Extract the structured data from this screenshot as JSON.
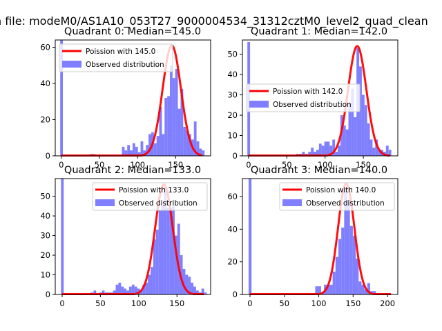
{
  "figure": {
    "suptitle": "n file: modeM0/AS1A10_053T27_9000004534_31312cztM0_level2_quad_clean"
  },
  "colors": {
    "histogram": "#7f7fff",
    "poisson": "#ff0000",
    "axes": "#000000"
  },
  "chart_data": [
    {
      "type": "bar",
      "title": "Quadrant 0: Median=145.0",
      "median": 145.0,
      "xlim": [
        -8,
        196
      ],
      "ylim": [
        0,
        64
      ],
      "xticks": [
        0,
        50,
        100,
        150
      ],
      "yticks": [
        0,
        20,
        40,
        60
      ],
      "legend_position": "top-left",
      "legend": [
        "Poission with 145.0",
        "Observed distribution"
      ],
      "series": [
        {
          "name": "Observed distribution",
          "type": "histogram",
          "bin_width": 3.5,
          "bins": [
            [
              -1.5,
              64
            ],
            [
              2.0,
              0
            ],
            [
              37.5,
              1
            ],
            [
              41.0,
              1
            ],
            [
              79.5,
              5
            ],
            [
              83.0,
              3
            ],
            [
              86.5,
              6
            ],
            [
              90.0,
              3
            ],
            [
              93.5,
              7
            ],
            [
              97.0,
              5
            ],
            [
              100.5,
              2
            ],
            [
              104.0,
              8
            ],
            [
              107.5,
              3
            ],
            [
              111.0,
              6
            ],
            [
              114.5,
              12
            ],
            [
              118.0,
              13
            ],
            [
              121.5,
              7
            ],
            [
              125.0,
              11
            ],
            [
              128.5,
              27
            ],
            [
              132.0,
              12
            ],
            [
              135.5,
              32
            ],
            [
              139.0,
              33
            ],
            [
              142.5,
              50
            ],
            [
              146.0,
              43
            ],
            [
              149.5,
              48
            ],
            [
              153.0,
              26
            ],
            [
              156.5,
              37
            ],
            [
              160.0,
              16
            ],
            [
              163.5,
              14
            ],
            [
              167.0,
              12
            ],
            [
              170.5,
              9
            ],
            [
              174.0,
              19
            ],
            [
              177.5,
              8
            ],
            [
              181.0,
              4
            ],
            [
              184.5,
              3
            ]
          ]
        },
        {
          "name": "Poission with 145.0",
          "type": "line",
          "mean": 145.0,
          "peak": 61,
          "x_from": 0,
          "x_to": 185
        }
      ]
    },
    {
      "type": "bar",
      "title": "Quadrant 1: Median=142.0",
      "median": 142.0,
      "xlim": [
        -8,
        195
      ],
      "ylim": [
        0,
        57
      ],
      "xticks": [
        0,
        50,
        100,
        150
      ],
      "yticks": [
        0,
        10,
        20,
        30,
        40,
        50
      ],
      "legend_position": "center-left",
      "legend": [
        "Poission with 142.0",
        "Observed distribution"
      ],
      "series": [
        {
          "name": "Observed distribution",
          "type": "histogram",
          "bin_width": 3.5,
          "bins": [
            [
              -1.5,
              56
            ],
            [
              62.0,
              1
            ],
            [
              66.0,
              1
            ],
            [
              70.0,
              2
            ],
            [
              74.0,
              1
            ],
            [
              78.0,
              2
            ],
            [
              81.5,
              4
            ],
            [
              85.0,
              2
            ],
            [
              88.5,
              3
            ],
            [
              92.0,
              6
            ],
            [
              95.5,
              5
            ],
            [
              99.0,
              7
            ],
            [
              102.5,
              7
            ],
            [
              106.0,
              5
            ],
            [
              109.5,
              8
            ],
            [
              113.0,
              2
            ],
            [
              116.5,
              5
            ],
            [
              120.0,
              20
            ],
            [
              123.5,
              15
            ],
            [
              127.0,
              13
            ],
            [
              130.5,
              26
            ],
            [
              134.0,
              33
            ],
            [
              137.5,
              19
            ],
            [
              141.0,
              53
            ],
            [
              144.5,
              44
            ],
            [
              148.0,
              30
            ],
            [
              151.5,
              25
            ],
            [
              155.0,
              16
            ],
            [
              158.5,
              8
            ],
            [
              162.0,
              4
            ],
            [
              165.5,
              8
            ],
            [
              169.0,
              3
            ],
            [
              172.5,
              3
            ],
            [
              176.0,
              2
            ],
            [
              179.5,
              5
            ],
            [
              183.0,
              3
            ]
          ]
        },
        {
          "name": "Poission with 142.0",
          "type": "line",
          "mean": 142.0,
          "peak": 54,
          "x_from": 0,
          "x_to": 185
        }
      ]
    },
    {
      "type": "bar",
      "title": "Quadrant 2: Median=133.0",
      "median": 133.0,
      "xlim": [
        -9,
        194
      ],
      "ylim": [
        0,
        59
      ],
      "xticks": [
        0,
        50,
        100,
        150
      ],
      "yticks": [
        0,
        10,
        20,
        30,
        40,
        50
      ],
      "legend_position": "top-right",
      "legend": [
        "Poission with 133.0",
        "Observed distribution"
      ],
      "series": [
        {
          "name": "Observed distribution",
          "type": "histogram",
          "bin_width": 3.5,
          "bins": [
            [
              -1.5,
              59
            ],
            [
              37.0,
              1
            ],
            [
              41.0,
              2
            ],
            [
              48.5,
              1
            ],
            [
              52.0,
              2
            ],
            [
              56.0,
              1
            ],
            [
              59.5,
              1
            ],
            [
              63.0,
              1
            ],
            [
              66.5,
              2
            ],
            [
              70.0,
              5
            ],
            [
              73.5,
              6
            ],
            [
              77.0,
              4
            ],
            [
              80.5,
              3
            ],
            [
              84.0,
              2
            ],
            [
              87.5,
              4
            ],
            [
              91.0,
              5
            ],
            [
              94.5,
              4
            ],
            [
              98.0,
              3
            ],
            [
              101.5,
              2
            ],
            [
              105.0,
              5
            ],
            [
              108.5,
              6
            ],
            [
              112.0,
              10
            ],
            [
              115.5,
              14
            ],
            [
              119.0,
              28
            ],
            [
              122.5,
              33
            ],
            [
              126.0,
              43
            ],
            [
              129.5,
              45
            ],
            [
              133.0,
              55
            ],
            [
              136.5,
              44
            ],
            [
              140.0,
              44
            ],
            [
              143.5,
              45
            ],
            [
              147.0,
              30
            ],
            [
              150.5,
              36
            ],
            [
              154.0,
              20
            ],
            [
              157.5,
              13
            ],
            [
              161.0,
              10
            ],
            [
              164.5,
              9
            ],
            [
              168.0,
              6
            ],
            [
              171.5,
              4
            ],
            [
              175.0,
              2
            ],
            [
              178.5,
              1
            ],
            [
              182.0,
              3
            ],
            [
              185.5,
              1
            ]
          ]
        },
        {
          "name": "Poission with 133.0",
          "type": "line",
          "mean": 133.0,
          "peak": 56,
          "x_from": 0,
          "x_to": 185
        }
      ]
    },
    {
      "type": "bar",
      "title": "Quadrant 3: Median=140.0",
      "median": 140.0,
      "xlim": [
        -11,
        215
      ],
      "ylim": [
        0,
        71
      ],
      "xticks": [
        0,
        50,
        100,
        150,
        200
      ],
      "yticks": [
        0,
        20,
        40,
        60
      ],
      "legend_position": "top-right",
      "legend": [
        "Poission with 140.0",
        "Observed distribution"
      ],
      "series": [
        {
          "name": "Observed distribution",
          "type": "histogram",
          "bin_width": 4.2,
          "bins": [
            [
              -2.0,
              71
            ],
            [
              95.0,
              5
            ],
            [
              99.2,
              5
            ],
            [
              103.4,
              1
            ],
            [
              107.6,
              6
            ],
            [
              111.8,
              6
            ],
            [
              116.0,
              6
            ],
            [
              120.2,
              14
            ],
            [
              124.4,
              23
            ],
            [
              128.6,
              34
            ],
            [
              132.8,
              41
            ],
            [
              137.0,
              65
            ],
            [
              141.2,
              58
            ],
            [
              145.4,
              42
            ],
            [
              149.6,
              36
            ],
            [
              153.8,
              22
            ],
            [
              158.0,
              8
            ],
            [
              162.2,
              6
            ],
            [
              166.4,
              3
            ],
            [
              170.6,
              7
            ],
            [
              174.8,
              2
            ],
            [
              179.0,
              2
            ]
          ]
        },
        {
          "name": "Poission with 140.0",
          "type": "line",
          "mean": 140.0,
          "peak": 68,
          "x_from": 0,
          "x_to": 205
        }
      ]
    }
  ]
}
